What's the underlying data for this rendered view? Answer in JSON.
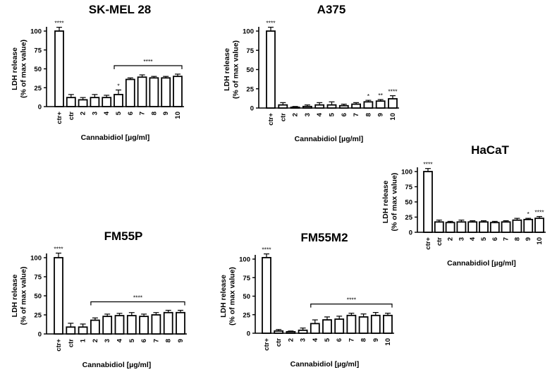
{
  "chart_data": [
    {
      "type": "bar",
      "title": "SK-MEL 28",
      "xlabel": "Cannabidiol [µg/ml]",
      "ylabel": [
        "LDH release",
        "(% of max value)"
      ],
      "categories": [
        "ctr+",
        "ctr",
        "2",
        "3",
        "4",
        "5",
        "6",
        "7",
        "8",
        "9",
        "10"
      ],
      "values": [
        100,
        12,
        9,
        12,
        12,
        16,
        36,
        39,
        38,
        38,
        40
      ],
      "errors": [
        5,
        4,
        3,
        4,
        3,
        6,
        2,
        3,
        2,
        2,
        3
      ],
      "ylim": [
        0,
        100
      ],
      "yticks": [
        0,
        25,
        50,
        75,
        100
      ],
      "significance": [
        {
          "category": "ctr+",
          "label": "****"
        },
        {
          "category": "5",
          "label": "*"
        }
      ],
      "bracket": {
        "from": "5",
        "to": "10",
        "label": "****"
      }
    },
    {
      "type": "bar",
      "title": "A375",
      "xlabel": "Cannabidiol [µg/ml]",
      "ylabel": [
        "LDH release",
        "(% of max value)"
      ],
      "categories": [
        "ctr+",
        "ctr",
        "2",
        "3",
        "4",
        "5",
        "6",
        "7",
        "8",
        "9",
        "10"
      ],
      "values": [
        100,
        4,
        1,
        2,
        4,
        4,
        3,
        5,
        8,
        9,
        12
      ],
      "errors": [
        5,
        3,
        1,
        2,
        3,
        4,
        2,
        2,
        2,
        2,
        4
      ],
      "ylim": [
        0,
        100
      ],
      "yticks": [
        0,
        25,
        50,
        75,
        100
      ],
      "significance": [
        {
          "category": "ctr+",
          "label": "****"
        },
        {
          "category": "8",
          "label": "*"
        },
        {
          "category": "9",
          "label": "**"
        },
        {
          "category": "10",
          "label": "****"
        }
      ]
    },
    {
      "type": "bar",
      "title": "HaCaT",
      "xlabel": "Cannabidiol [µg/ml]",
      "ylabel": [
        "LDH release",
        "(% of max value)"
      ],
      "categories": [
        "ctr+",
        "ctr",
        "2",
        "3",
        "4",
        "5",
        "6",
        "7",
        "8",
        "9",
        "10"
      ],
      "values": [
        100,
        17,
        16,
        17,
        17,
        17,
        16,
        17,
        20,
        21,
        23
      ],
      "errors": [
        5,
        3,
        2,
        3,
        2,
        2,
        2,
        2,
        3,
        2,
        3
      ],
      "ylim": [
        0,
        100
      ],
      "yticks": [
        0,
        25,
        50,
        75,
        100
      ],
      "significance": [
        {
          "category": "ctr+",
          "label": "****"
        },
        {
          "category": "9",
          "label": "*"
        },
        {
          "category": "10",
          "label": "****"
        }
      ]
    },
    {
      "type": "bar",
      "title": "FM55P",
      "xlabel": "Cannabidiol [µg/ml]",
      "ylabel": [
        "LDH release",
        "(% of max value)"
      ],
      "categories": [
        "ctr+",
        "ctr",
        "1",
        "2",
        "3",
        "4",
        "5",
        "6",
        "7",
        "8",
        "9"
      ],
      "values": [
        100,
        9,
        9,
        18,
        23,
        24,
        24,
        23,
        25,
        28,
        28
      ],
      "errors": [
        6,
        5,
        4,
        3,
        3,
        3,
        4,
        3,
        3,
        3,
        3
      ],
      "ylim": [
        0,
        100
      ],
      "yticks": [
        0,
        25,
        50,
        75,
        100
      ],
      "significance": [
        {
          "category": "ctr+",
          "label": "****"
        }
      ],
      "bracket": {
        "from": "2",
        "to": "9",
        "label": "****"
      }
    },
    {
      "type": "bar",
      "title": "FM55M2",
      "xlabel": "Cannabidiol [µg/ml]",
      "ylabel": [
        "LDH release",
        "(% of max value)"
      ],
      "categories": [
        "ctr+",
        "ctr",
        "2",
        "3",
        "4",
        "5",
        "6",
        "7",
        "8",
        "9",
        "10"
      ],
      "values": [
        102,
        3,
        2,
        4,
        13,
        18,
        19,
        24,
        22,
        24,
        24
      ],
      "errors": [
        5,
        2,
        1,
        3,
        5,
        4,
        4,
        3,
        4,
        4,
        3
      ],
      "ylim": [
        0,
        100
      ],
      "yticks": [
        0,
        25,
        50,
        75,
        100
      ],
      "significance": [
        {
          "category": "ctr+",
          "label": "****"
        }
      ],
      "bracket": {
        "from": "4",
        "to": "10",
        "label": "****"
      }
    }
  ]
}
